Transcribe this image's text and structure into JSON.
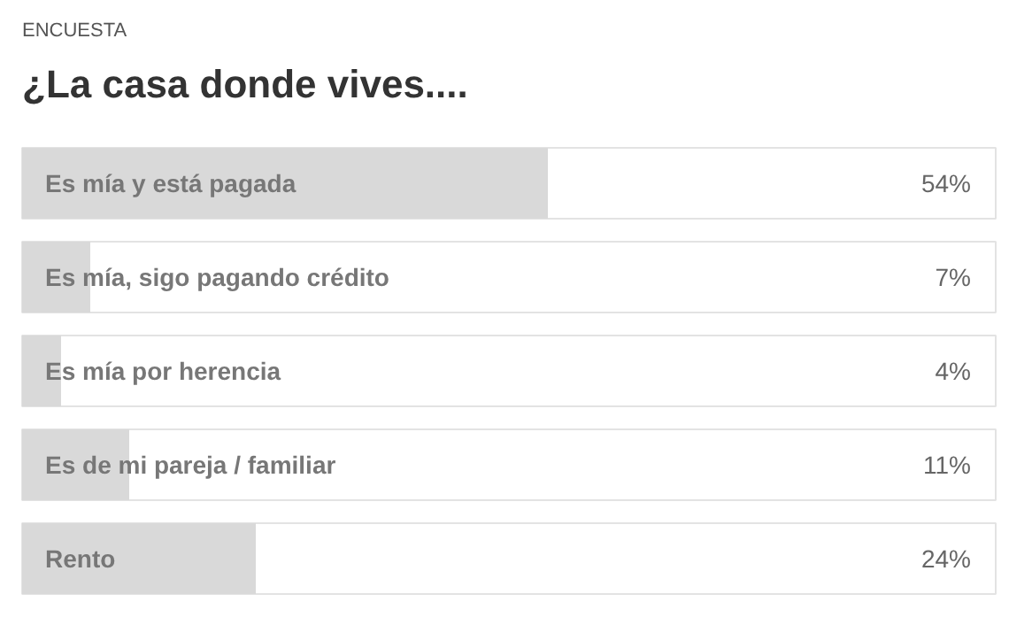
{
  "chart_data": {
    "type": "bar",
    "orientation": "horizontal",
    "subtitle": "ENCUESTA",
    "title": "¿La casa donde vives....",
    "categories": [
      "Es mía y está pagada",
      "Es mía, sigo pagando crédito",
      "Es mía por herencia",
      "Es de mi pareja / familiar",
      "Rento"
    ],
    "values": [
      54,
      7,
      4,
      11,
      24
    ],
    "value_labels": [
      "54%",
      "7%",
      "4%",
      "11%",
      "24%"
    ],
    "color": "#d9d9d9",
    "xlim": [
      0,
      100
    ],
    "tick_labels": false,
    "grid": false
  }
}
